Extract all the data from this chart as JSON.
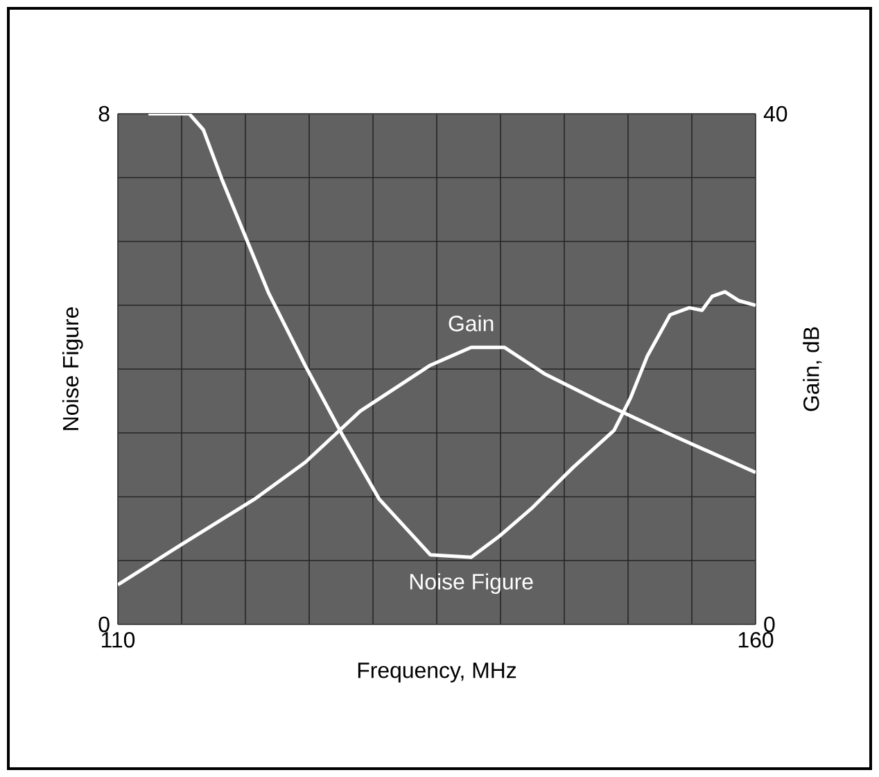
{
  "chart_data": {
    "type": "line",
    "xlabel": "Frequency, MHz",
    "ylabel": "Noise Figure",
    "y2label": "Gain, dB",
    "xlim": [
      110,
      160
    ],
    "ylim": [
      0,
      8
    ],
    "y2lim": [
      0,
      40
    ],
    "xticks": [
      110,
      {
        "value": 115,
        "label": null
      },
      {
        "value": 120,
        "label": null
      },
      {
        "value": 125,
        "label": null
      },
      {
        "value": 130,
        "label": null
      },
      {
        "value": 135,
        "label": null
      },
      {
        "value": 140,
        "label": null
      },
      {
        "value": 145,
        "label": null
      },
      {
        "value": 150,
        "label": null
      },
      {
        "value": 155,
        "label": null
      },
      160
    ],
    "yticks": [
      0,
      {
        "value": 1,
        "label": null
      },
      {
        "value": 2,
        "label": null
      },
      {
        "value": 3,
        "label": null
      },
      {
        "value": 4,
        "label": null
      },
      {
        "value": 5,
        "label": null
      },
      {
        "value": 6,
        "label": null
      },
      {
        "value": 7,
        "label": null
      },
      8
    ],
    "y2ticks": [
      0,
      40
    ],
    "grid": true,
    "series": [
      {
        "name": "Gain",
        "color": "#ffffff",
        "axis": "y2",
        "x": [
          110,
          114.9,
          120.7,
          124.7,
          129.0,
          134.5,
          137.7,
          140.3,
          143.5,
          147.9,
          152.6,
          160
        ],
        "values": [
          3.1,
          6.2,
          9.8,
          12.7,
          16.7,
          20.3,
          21.7,
          21.7,
          19.6,
          17.4,
          15.2,
          11.9
        ]
      },
      {
        "name": "Noise Figure",
        "color": "#ffffff",
        "x": [
          112.4,
          115.6,
          116.7,
          118.2,
          121.8,
          124.7,
          127.6,
          130.5,
          134.5,
          137.7,
          139.9,
          142.4,
          145.7,
          148.9,
          150.2,
          151.5,
          153.3,
          154.8,
          155.8,
          156.6,
          157.6,
          158.7,
          160
        ],
        "values": [
          8.0,
          8.0,
          7.75,
          6.95,
          5.2,
          4.05,
          2.97,
          1.96,
          1.09,
          1.05,
          1.38,
          1.81,
          2.46,
          3.04,
          3.55,
          4.2,
          4.85,
          4.96,
          4.92,
          5.14,
          5.21,
          5.07,
          5.0
        ]
      }
    ]
  }
}
